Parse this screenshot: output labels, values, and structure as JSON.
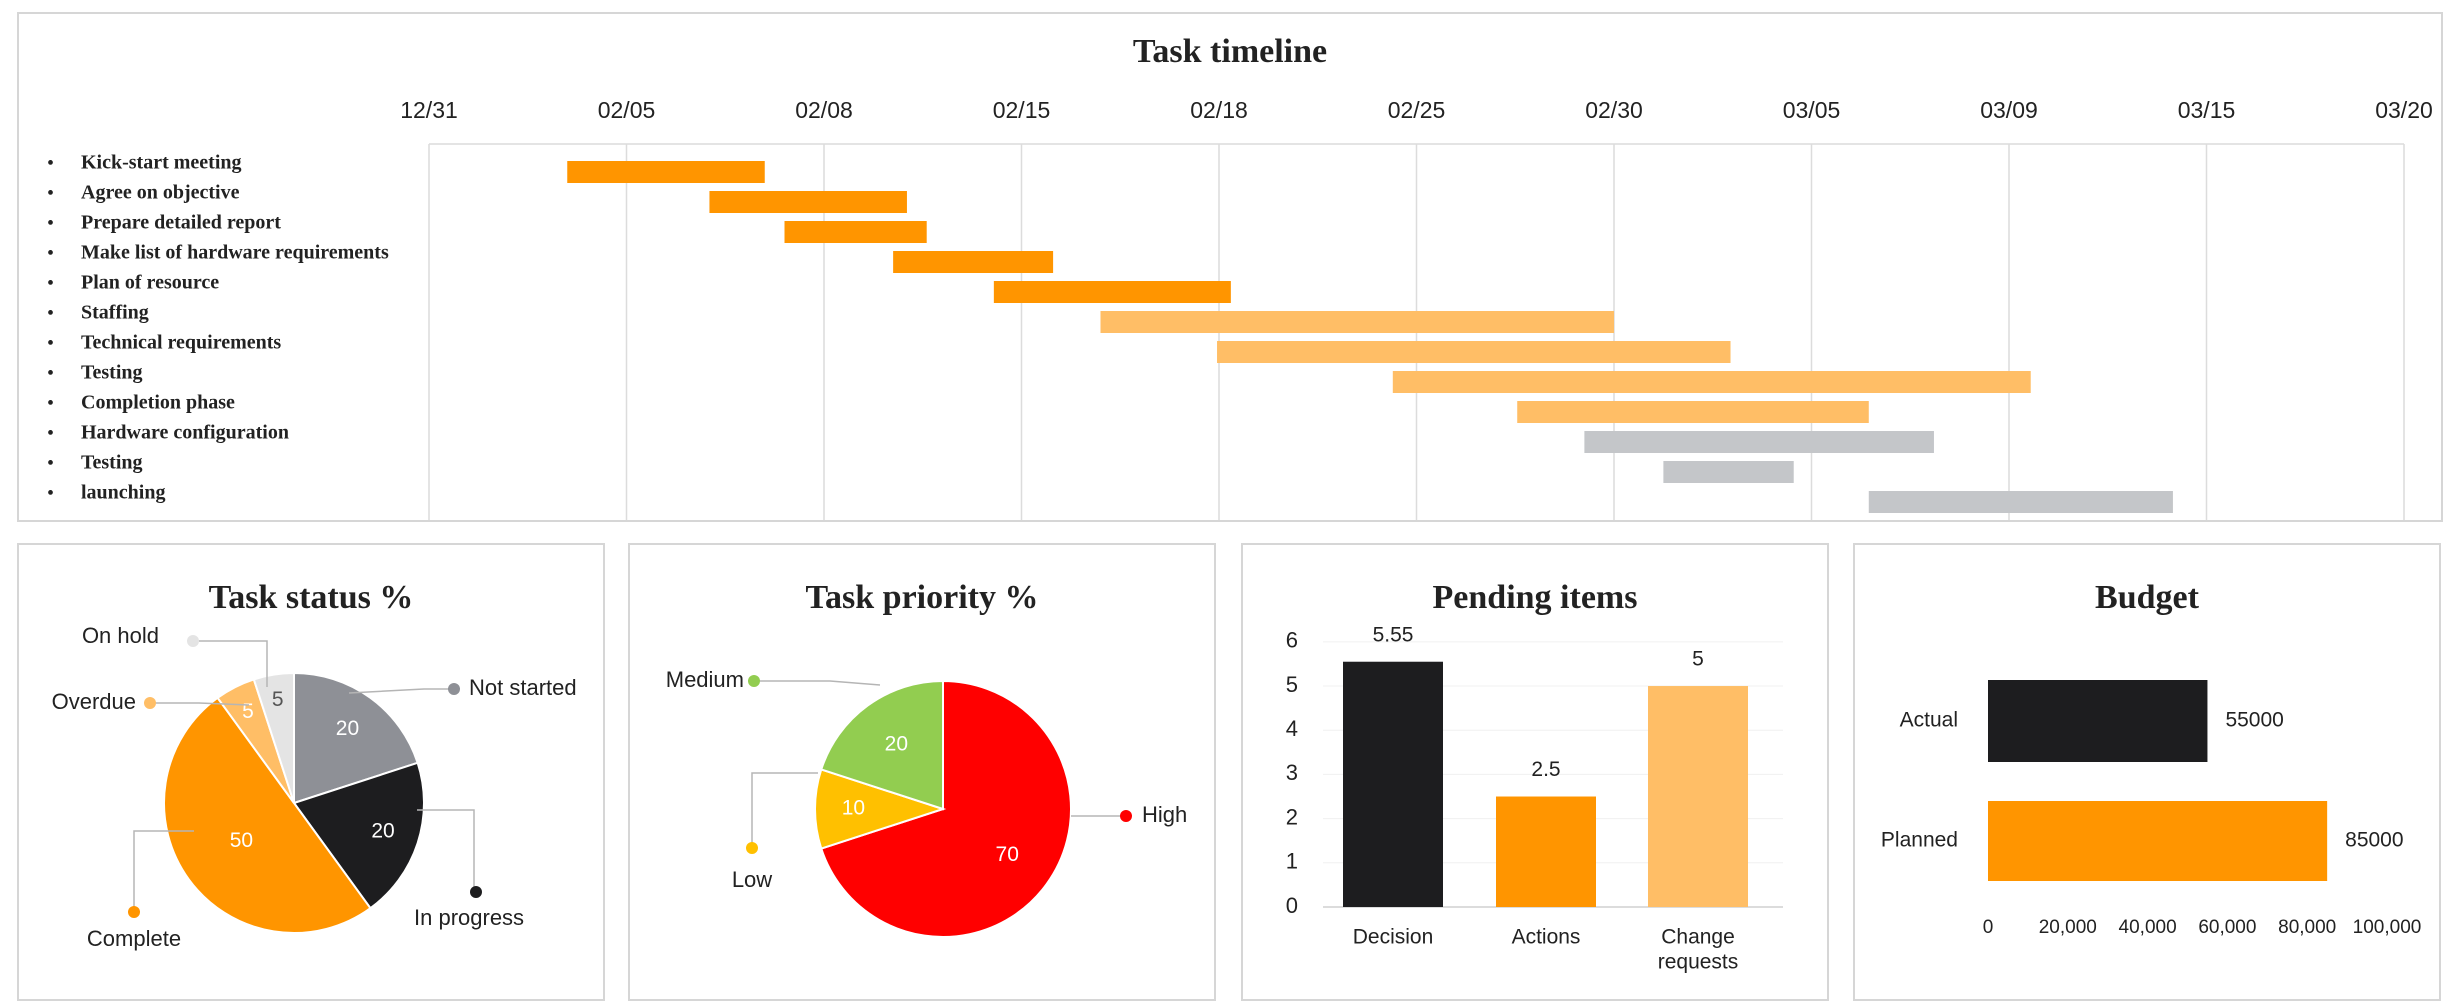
{
  "colors": {
    "orange": "#ff9500",
    "light_orange": "#ffbe66",
    "grey": "#c4c6c9",
    "black": "#1d1d1f",
    "mid_grey": "#8e9096",
    "light_grey": "#e4e4e4",
    "red": "#ff0000",
    "green": "#92cd50",
    "yellow": "#ffc000",
    "grid": "#dcdcdc",
    "text": "#222222"
  },
  "chart_data": [
    {
      "type": "bar",
      "orientation": "horizontal",
      "title": "Task timeline",
      "tick_labels": [
        "12/31",
        "02/05",
        "02/08",
        "02/15",
        "02/18",
        "02/25",
        "02/30",
        "03/05",
        "03/09",
        "03/15",
        "03/20"
      ],
      "grid": true,
      "tasks": [
        {
          "name": "Kick-start meeting",
          "start": 0.7,
          "end": 1.7,
          "color": "orange"
        },
        {
          "name": "Agree on objective",
          "start": 1.42,
          "end": 2.42,
          "color": "orange"
        },
        {
          "name": "Prepare detailed report",
          "start": 1.8,
          "end": 2.52,
          "color": "orange"
        },
        {
          "name": "Make list of hardware requirements",
          "start": 2.35,
          "end": 3.16,
          "color": "orange"
        },
        {
          "name": "Plan of resource",
          "start": 2.86,
          "end": 4.06,
          "color": "orange"
        },
        {
          "name": "Staffing",
          "start": 3.4,
          "end": 6.0,
          "color": "light_orange"
        },
        {
          "name": "Technical requirements",
          "start": 3.99,
          "end": 6.59,
          "color": "light_orange"
        },
        {
          "name": "Testing",
          "start": 4.88,
          "end": 8.11,
          "color": "light_orange"
        },
        {
          "name": "Completion phase",
          "start": 5.51,
          "end": 7.29,
          "color": "light_orange"
        },
        {
          "name": "Hardware configuration",
          "start": 5.85,
          "end": 7.62,
          "color": "grey"
        },
        {
          "name": "Testing",
          "start": 6.25,
          "end": 6.91,
          "color": "grey"
        },
        {
          "name": "launching",
          "start": 7.29,
          "end": 8.83,
          "color": "grey"
        }
      ]
    },
    {
      "type": "pie",
      "title": "Task status %",
      "slices": [
        {
          "label": "Not started",
          "value": 20,
          "color": "mid_grey"
        },
        {
          "label": "In progress",
          "value": 20,
          "color": "black"
        },
        {
          "label": "Complete",
          "value": 50,
          "color": "orange"
        },
        {
          "label": "Overdue",
          "value": 5,
          "color": "light_orange"
        },
        {
          "label": "On hold",
          "value": 5,
          "color": "light_grey"
        }
      ]
    },
    {
      "type": "pie",
      "title": "Task priority %",
      "slices": [
        {
          "label": "High",
          "value": 70,
          "color": "red"
        },
        {
          "label": "Low",
          "value": 10,
          "color": "yellow"
        },
        {
          "label": "Medium",
          "value": 20,
          "color": "green"
        }
      ]
    },
    {
      "type": "bar",
      "title": "Pending items",
      "categories": [
        "Decision",
        "Actions",
        "Change requests"
      ],
      "values": [
        5.55,
        2.5,
        5
      ],
      "value_labels": [
        "5.55",
        "2.5",
        "5"
      ],
      "colors": [
        "black",
        "orange",
        "light_orange"
      ],
      "yticks": [
        "0",
        "1",
        "2",
        "3",
        "4",
        "5",
        "6"
      ],
      "ylim": [
        0,
        6.2
      ]
    },
    {
      "type": "bar",
      "orientation": "horizontal",
      "title": "Budget",
      "categories": [
        "Actual",
        "Planned"
      ],
      "values": [
        55000,
        85000
      ],
      "value_labels": [
        "55000",
        "85000"
      ],
      "colors": [
        "black",
        "orange"
      ],
      "xticks": [
        "0",
        "20,000",
        "40,000",
        "60,000",
        "80,000",
        "100,000"
      ],
      "xlim": [
        0,
        100000
      ]
    }
  ]
}
